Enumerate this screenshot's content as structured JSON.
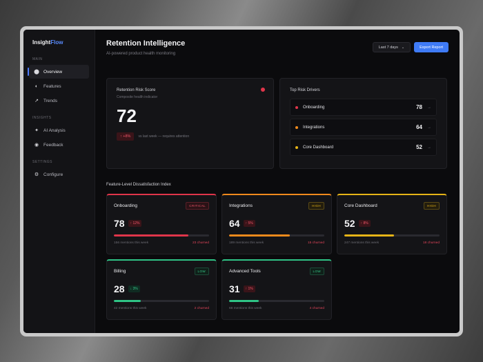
{
  "app": {
    "name_main": "Insight",
    "name_accent": "Flow"
  },
  "sidebar": {
    "sections": [
      {
        "label": "MAIN",
        "items": [
          {
            "label": "Overview",
            "icon": "circle-icon",
            "glyph": "⬤",
            "active": true
          },
          {
            "label": "Features",
            "icon": "half-circle-icon",
            "glyph": "◐",
            "active": false
          },
          {
            "label": "Trends",
            "icon": "trend-arrow-icon",
            "glyph": "↗",
            "active": false
          }
        ]
      },
      {
        "label": "INSIGHTS",
        "items": [
          {
            "label": "AI Analysis",
            "icon": "sparkle-icon",
            "glyph": "✦",
            "active": false
          },
          {
            "label": "Feedback",
            "icon": "feedback-icon",
            "glyph": "◉",
            "active": false
          }
        ]
      },
      {
        "label": "SETTINGS",
        "items": [
          {
            "label": "Configure",
            "icon": "gear-icon",
            "glyph": "⚙",
            "active": false
          }
        ]
      }
    ]
  },
  "header": {
    "title": "Retention Intelligence",
    "subtitle": "AI-powered product health monitoring",
    "date_range": "Last 7 days",
    "export_label": "Export Report"
  },
  "risk": {
    "title": "Retention Risk Score",
    "subtitle": "Composite health indicator",
    "value": "72",
    "change": "↑ +8%",
    "note": "vs last week — requires attention"
  },
  "drivers": {
    "title": "Top Risk Drivers",
    "items": [
      {
        "name": "Onboarding",
        "value": "78",
        "color": "#e0354a"
      },
      {
        "name": "Integrations",
        "value": "64",
        "color": "#f08a1c"
      },
      {
        "name": "Core Dashboard",
        "value": "52",
        "color": "#e6b417"
      }
    ]
  },
  "features": {
    "title": "Feature-Level Dissatisfaction Index",
    "cards": [
      {
        "name": "Onboarding",
        "badge": "CRITICAL",
        "score": "78",
        "change": "↑ 12%",
        "trend": "up",
        "mentions": "156 mentions this week",
        "churned": "23 churned",
        "fill": 0.78,
        "color": "#e0354a"
      },
      {
        "name": "Integrations",
        "badge": "HIGH",
        "score": "64",
        "change": "↑ 5%",
        "trend": "up",
        "mentions": "189 mentions this week",
        "churned": "15 churned",
        "fill": 0.64,
        "color": "#f08a1c"
      },
      {
        "name": "Core Dashboard",
        "badge": "HIGH",
        "score": "52",
        "change": "↑ 8%",
        "trend": "up",
        "mentions": "247 mentions this week",
        "churned": "18 churned",
        "fill": 0.52,
        "color": "#e6b417"
      },
      {
        "name": "Billing",
        "badge": "LOW",
        "score": "28",
        "change": "↓ 3%",
        "trend": "down",
        "mentions": "42 mentions this week",
        "churned": "2 churned",
        "fill": 0.28,
        "color": "#2fc486"
      },
      {
        "name": "Advanced Tools",
        "badge": "LOW",
        "score": "31",
        "change": "↑ 1%",
        "trend": "up",
        "mentions": "68 mentions this week",
        "churned": "4 churned",
        "fill": 0.31,
        "color": "#2fc486"
      }
    ]
  }
}
